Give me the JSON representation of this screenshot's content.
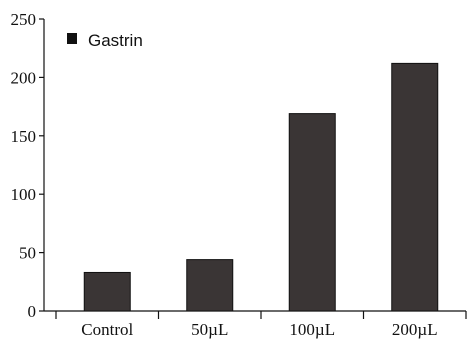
{
  "chart_data": {
    "type": "bar",
    "categories": [
      "Control",
      "50µL",
      "100µL",
      "200µL"
    ],
    "series": [
      {
        "name": "Gastrin",
        "values": [
          33,
          44,
          169,
          212
        ]
      }
    ],
    "ylim": [
      0,
      250
    ],
    "yticks": [
      0,
      50,
      100,
      150,
      200,
      250
    ],
    "title": "",
    "xlabel": "",
    "ylabel": "",
    "grid": false,
    "legend": "top-left",
    "bar_color": "#3a3535"
  }
}
